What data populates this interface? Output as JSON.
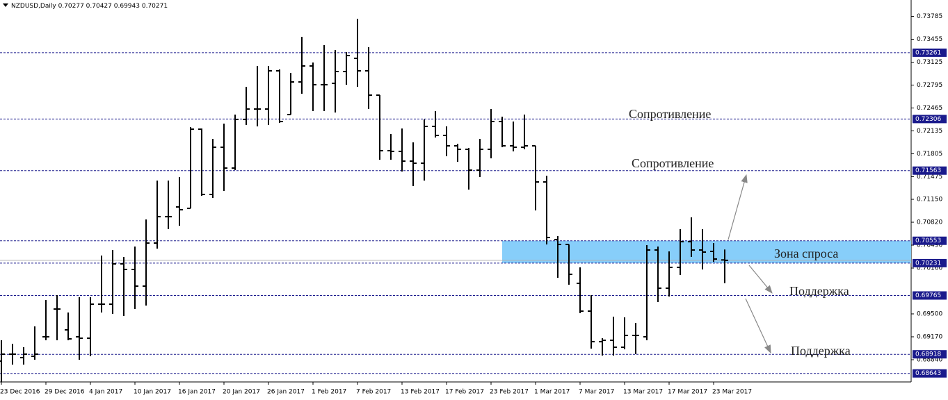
{
  "chart_data": {
    "type": "ohlc",
    "title": "NZDUSD,Daily",
    "categories": [
      "23 Dec 2016",
      null,
      null,
      null,
      "29 Dec 2016",
      null,
      null,
      null,
      "4 Jan 2017",
      null,
      null,
      null,
      "10 Jan 2017",
      null,
      null,
      null,
      "16 Jan 2017",
      null,
      null,
      null,
      "20 Jan 2017",
      null,
      null,
      null,
      "26 Jan 2017",
      null,
      null,
      null,
      "1 Feb 2017",
      null,
      null,
      null,
      "7 Feb 2017",
      null,
      null,
      null,
      "13 Feb 2017",
      null,
      null,
      null,
      "17 Feb 2017",
      null,
      null,
      null,
      "23 Feb 2017",
      null,
      null,
      null,
      "1 Mar 2017",
      null,
      null,
      null,
      "7 Mar 2017",
      null,
      null,
      null,
      "13 Mar 2017",
      null,
      null,
      null,
      "17 Mar 2017",
      null,
      null,
      null,
      "23 Mar 2017",
      null
    ],
    "open": [
      0.6882,
      0.6892,
      0.6887,
      0.6889,
      0.6917,
      0.6957,
      0.6927,
      0.6917,
      0.6915,
      0.6964,
      0.6964,
      0.7022,
      0.7014,
      0.699,
      0.7052,
      0.709,
      0.7104,
      0.7102,
      0.7216,
      0.7122,
      0.719,
      0.716,
      0.723,
      0.7245,
      0.7245,
      0.73,
      0.7237,
      0.7284,
      0.7307,
      0.728,
      0.7282,
      0.7299,
      0.7318,
      0.73,
      0.7265,
      0.7185,
      0.7184,
      0.717,
      0.7167,
      0.722,
      0.7207,
      0.7192,
      0.7187,
      0.7157,
      0.7187,
      0.7227,
      0.7192,
      0.719,
      0.7192,
      0.714,
      0.7057,
      0.705,
      0.6994,
      0.6954,
      0.691,
      0.6912,
      0.6902,
      0.6919,
      0.6917,
      0.7042,
      0.6987,
      0.7017,
      0.7054,
      0.7042,
      0.704,
      0.70277
    ],
    "high": [
      0.6912,
      0.6907,
      0.6902,
      0.6932,
      0.697,
      0.6977,
      0.6952,
      0.6974,
      0.6974,
      0.7034,
      0.7042,
      0.7032,
      0.7047,
      0.7086,
      0.7142,
      0.7142,
      0.7147,
      0.7219,
      0.7217,
      0.7202,
      0.7224,
      0.7237,
      0.7277,
      0.7307,
      0.7307,
      0.7302,
      0.7297,
      0.7349,
      0.7312,
      0.7337,
      0.733,
      0.7327,
      0.7375,
      0.7334,
      0.7265,
      0.7209,
      0.7217,
      0.7197,
      0.723,
      0.7242,
      0.722,
      0.7195,
      0.7189,
      0.7202,
      0.7245,
      0.7234,
      0.7227,
      0.7237,
      0.7192,
      0.7149,
      0.7062,
      0.705,
      0.7017,
      0.6977,
      0.6915,
      0.6946,
      0.6945,
      0.6937,
      0.7049,
      0.7047,
      0.704,
      0.7072,
      0.7089,
      0.7072,
      0.7052,
      0.70427
    ],
    "low": [
      0.6852,
      0.6877,
      0.6877,
      0.6884,
      0.6912,
      0.6912,
      0.6912,
      0.6884,
      0.6889,
      0.6952,
      0.695,
      0.6947,
      0.6957,
      0.6962,
      0.7044,
      0.7072,
      0.7077,
      0.7102,
      0.712,
      0.7117,
      0.7127,
      0.7157,
      0.7222,
      0.722,
      0.7222,
      0.7225,
      0.7237,
      0.7267,
      0.7242,
      0.7242,
      0.724,
      0.728,
      0.7277,
      0.7245,
      0.7172,
      0.7172,
      0.7155,
      0.7134,
      0.7142,
      0.7204,
      0.7177,
      0.7169,
      0.7129,
      0.7147,
      0.7174,
      0.719,
      0.7184,
      0.7187,
      0.7099,
      0.705,
      0.7002,
      0.6992,
      0.6951,
      0.69,
      0.689,
      0.689,
      0.6899,
      0.6892,
      0.6912,
      0.6967,
      0.6975,
      0.7006,
      0.7032,
      0.7014,
      0.7025,
      0.69943
    ],
    "close": [
      0.6892,
      0.6892,
      0.6892,
      0.6892,
      0.6917,
      0.6957,
      0.6914,
      0.6915,
      0.6964,
      0.6964,
      0.7022,
      0.7014,
      0.699,
      0.7052,
      0.709,
      0.709,
      0.71,
      0.7216,
      0.7122,
      0.719,
      0.716,
      0.723,
      0.7245,
      0.7245,
      0.73,
      0.7227,
      0.7284,
      0.7307,
      0.728,
      0.728,
      0.7299,
      0.7322,
      0.73,
      0.7265,
      0.7185,
      0.7184,
      0.717,
      0.7167,
      0.722,
      0.7207,
      0.7192,
      0.7187,
      0.7157,
      0.7187,
      0.7227,
      0.7192,
      0.719,
      0.7192,
      0.714,
      0.706,
      0.705,
      0.7007,
      0.6954,
      0.691,
      0.6912,
      0.6902,
      0.6919,
      0.6919,
      0.7042,
      0.6987,
      0.7017,
      0.7054,
      0.7042,
      0.7039,
      0.7029,
      0.70271
    ],
    "ylim": [
      0.6852,
      0.7402
    ],
    "yticks": [
      0.73785,
      0.73455,
      0.73125,
      0.72795,
      0.72465,
      0.72135,
      0.71805,
      0.71475,
      {
        "value": 0.7115,
        "label": "0.71150"
      },
      {
        "value": 0.7082,
        "label": "0.70820"
      },
      {
        "value": 0.7049,
        "label": "0.70490"
      },
      {
        "value": 0.7016,
        "label": "0.70160"
      },
      {
        "value": 0.695,
        "label": "0.69500"
      },
      {
        "value": 0.6917,
        "label": "0.69170"
      },
      {
        "value": 0.6884,
        "label": "0.68840"
      }
    ],
    "levels": [
      0.73261,
      0.72306,
      0.71563,
      0.70553,
      0.70231,
      0.69765,
      0.68918,
      0.68643
    ],
    "annotations": [
      "Сопротивление",
      "Сопротивление",
      "Зона спроса",
      "Поддержка",
      "Поддержка"
    ],
    "bar_color": "#000000",
    "level_color": "#1a1a8c",
    "zone_color": "#87cefa"
  }
}
